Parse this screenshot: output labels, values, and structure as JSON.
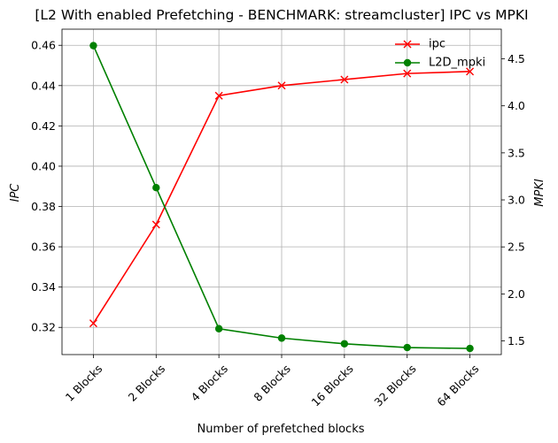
{
  "chart_data": {
    "type": "line",
    "title": "[L2 With enabled Prefetching - BENCHMARK: streamcluster]  IPC vs MPKI",
    "xlabel": "Number of prefetched blocks",
    "ylabel_left": "IPC",
    "ylabel_right": "MPKI",
    "categories": [
      "1 Blocks",
      "2 Blocks",
      "4 Blocks",
      "8 Blocks",
      "16 Blocks",
      "32 Blocks",
      "64 Blocks"
    ],
    "ylim_left": [
      0.3065,
      0.468
    ],
    "yticks_left": [
      0.32,
      0.34,
      0.36,
      0.38,
      0.4,
      0.42,
      0.44,
      0.46
    ],
    "ylim_right": [
      1.355,
      4.815
    ],
    "yticks_right": [
      1.5,
      2.0,
      2.5,
      3.0,
      3.5,
      4.0,
      4.5
    ],
    "grid": true,
    "legend_position": "upper right",
    "series": [
      {
        "name": "ipc",
        "axis": "left",
        "color": "#ff0000",
        "marker": "x",
        "values": [
          0.322,
          0.371,
          0.435,
          0.44,
          0.443,
          0.446,
          0.447
        ]
      },
      {
        "name": "L2D_mpki",
        "axis": "right",
        "color": "#008000",
        "marker": "o",
        "values": [
          4.64,
          3.13,
          1.63,
          1.53,
          1.47,
          1.43,
          1.42
        ]
      }
    ]
  }
}
